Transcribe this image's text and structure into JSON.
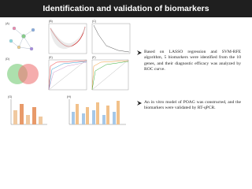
{
  "header": {
    "title": "Identification and validation of biomarkers"
  },
  "figure": {
    "panel_labels": [
      "(A)",
      "(B)",
      "(C)",
      "(D)",
      "(E)",
      "(F)",
      "(G)",
      "(H)"
    ]
  },
  "bullets": [
    "Based on LASSO regression and SVM-RFE algorithm, 5 biomarkers were identified from the 10 genes, and their diagnostic efficacy was analyzed by ROC curve.",
    "An in vitro model of POAG was constructed, and the biomarkers were validated by RT-qPCR."
  ]
}
